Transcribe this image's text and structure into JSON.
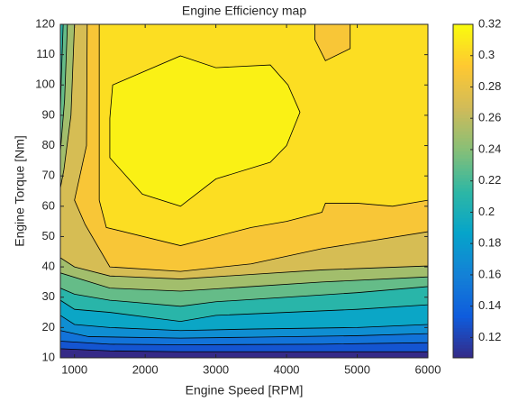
{
  "chart_data": {
    "type": "contour",
    "title": "Engine Efficiency map",
    "x_label": "Engine Speed [RPM]",
    "y_label": "Engine Torque [Nm]",
    "xlim": [
      800,
      6000
    ],
    "xticks": [
      1000,
      2000,
      3000,
      4000,
      5000,
      6000
    ],
    "ylim": [
      10,
      120
    ],
    "yticks": [
      10,
      20,
      30,
      40,
      50,
      60,
      70,
      80,
      90,
      100,
      110,
      120
    ],
    "clim": [
      0.107,
      0.32
    ],
    "cticks": [
      0.12,
      0.14,
      0.16,
      0.18,
      0.2,
      0.22,
      0.24,
      0.26,
      0.28,
      0.3,
      0.32
    ],
    "colormap": [
      "#352a87",
      "#0f5cdd",
      "#1481d6",
      "#06a4ca",
      "#2eb7a4",
      "#87bf77",
      "#d1bb59",
      "#fec832",
      "#f9fb0e"
    ],
    "line_color": "#000000",
    "contours": [
      {
        "level": 0.12,
        "x": [
          800,
          1500,
          2500,
          4500,
          6000,
          6000,
          800
        ],
        "y": [
          13,
          12.3,
          12,
          12,
          12,
          120,
          120
        ]
      },
      {
        "level": 0.14,
        "x": [
          800,
          1500,
          2500,
          4500,
          6000,
          6000,
          800
        ],
        "y": [
          15.5,
          14.5,
          14.3,
          14.5,
          15,
          120,
          120
        ]
      },
      {
        "level": 0.16,
        "x": [
          800,
          1200,
          2500,
          3500,
          5000,
          6000,
          6000,
          800
        ],
        "y": [
          19,
          17,
          16.5,
          16.8,
          17.3,
          18,
          120,
          120
        ]
      },
      {
        "level": 0.18,
        "x": [
          800,
          1000,
          1500,
          2500,
          3500,
          5000,
          6000,
          6000,
          800
        ],
        "y": [
          24,
          21,
          20,
          19,
          19.5,
          20,
          21,
          120,
          120
        ]
      },
      {
        "level": 0.2,
        "x": [
          800,
          1000,
          1500,
          2500,
          3000,
          4000,
          5000,
          6000,
          6000,
          800
        ],
        "y": [
          29,
          26,
          25,
          22,
          24,
          25,
          26,
          27.5,
          120,
          120
        ]
      },
      {
        "level": 0.22,
        "x": [
          800,
          1000,
          1500,
          2500,
          3000,
          4000,
          5000,
          6000,
          6000,
          840,
          810,
          800
        ],
        "y": [
          33,
          31,
          29,
          27,
          28.5,
          30,
          31.5,
          33.5,
          120,
          120,
          100,
          90
        ]
      },
      {
        "level": 0.24,
        "x": [
          800,
          1500,
          2500,
          3500,
          4500,
          6000,
          6000,
          900,
          860,
          800
        ],
        "y": [
          38,
          33,
          32,
          33.5,
          35,
          36.7,
          120,
          120,
          95,
          78
        ]
      },
      {
        "level": 0.26,
        "x": [
          800,
          1000,
          1500,
          2500,
          3500,
          4500,
          6000,
          6000,
          1000,
          950,
          850,
          800
        ],
        "y": [
          43,
          40,
          37,
          36,
          37.5,
          39,
          40.3,
          120,
          120,
          90,
          72,
          66
        ]
      },
      {
        "level": 0.28,
        "x": [
          1000,
          1150,
          1500,
          2500,
          3500,
          4500,
          6000,
          6000,
          1180,
          1170
        ],
        "y": [
          62,
          54,
          40,
          38.5,
          41,
          46,
          51.6,
          120,
          120,
          80
        ]
      },
      {
        "level": 0.3,
        "x": [
          1350,
          1450,
          2500,
          3000,
          3500,
          4000,
          4500,
          4550,
          5000,
          5500,
          6000,
          6000,
          4900,
          4900,
          4550,
          4400,
          4400,
          1350
        ],
        "y": [
          62,
          53,
          47,
          50,
          53,
          55,
          58,
          61,
          61,
          60,
          62,
          120,
          120,
          112,
          108,
          115,
          120,
          120
        ]
      },
      {
        "level": 0.31,
        "x": [
          2500,
          3000,
          3770,
          4020,
          4190,
          4000,
          3770,
          3000,
          2500,
          1960,
          1500,
          1500,
          1540
        ],
        "y": [
          109.6,
          105.7,
          106.6,
          100,
          91,
          80,
          74.5,
          69,
          60,
          64,
          76,
          89,
          100
        ]
      }
    ]
  }
}
